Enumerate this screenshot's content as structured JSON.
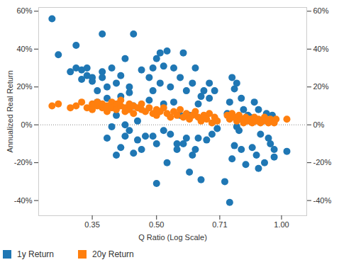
{
  "chart_data": {
    "type": "scatter",
    "x_label": "Q Ratio (Log Scale)",
    "y_label": "Annualized Real Return",
    "log": "x",
    "grid": false,
    "legend": "bottom",
    "xlim": [
      0.26,
      1.15
    ],
    "xticks": [
      0.35,
      {
        "value": 0.5,
        "label": "0.50"
      },
      0.71,
      {
        "value": 1,
        "label": "1.00"
      }
    ],
    "ylim": [
      -48,
      62
    ],
    "yticks": [
      {
        "value": -40,
        "label": "-40%"
      },
      {
        "value": -20,
        "label": "-20%"
      },
      {
        "value": 0,
        "label": "0%"
      },
      {
        "value": 20,
        "label": "20%"
      },
      {
        "value": 40,
        "label": "40%"
      },
      {
        "value": 60,
        "label": "60%"
      }
    ],
    "series": [
      {
        "name": "1y Return",
        "color": "#1f77b4",
        "marker": "circle",
        "x": [
          0.28,
          0.29,
          0.31,
          0.32,
          0.32,
          0.33,
          0.33,
          0.34,
          0.34,
          0.35,
          0.35,
          0.36,
          0.36,
          0.37,
          0.37,
          0.37,
          0.38,
          0.38,
          0.38,
          0.39,
          0.39,
          0.39,
          0.4,
          0.4,
          0.4,
          0.41,
          0.41,
          0.41,
          0.42,
          0.42,
          0.42,
          0.43,
          0.43,
          0.43,
          0.44,
          0.44,
          0.44,
          0.45,
          0.45,
          0.46,
          0.46,
          0.47,
          0.48,
          0.48,
          0.49,
          0.49,
          0.49,
          0.5,
          0.5,
          0.5,
          0.51,
          0.51,
          0.52,
          0.52,
          0.52,
          0.53,
          0.53,
          0.54,
          0.54,
          0.55,
          0.55,
          0.56,
          0.56,
          0.57,
          0.57,
          0.58,
          0.58,
          0.59,
          0.59,
          0.6,
          0.6,
          0.61,
          0.61,
          0.62,
          0.62,
          0.63,
          0.63,
          0.64,
          0.64,
          0.65,
          0.66,
          0.67,
          0.67,
          0.68,
          0.69,
          0.7,
          0.73,
          0.74,
          0.75,
          0.75,
          0.76,
          0.76,
          0.77,
          0.77,
          0.78,
          0.78,
          0.79,
          0.8,
          0.8,
          0.81,
          0.82,
          0.83,
          0.84,
          0.85,
          0.86,
          0.87,
          0.88,
          0.88,
          0.89,
          0.9,
          0.91,
          0.92,
          0.93,
          0.94,
          0.95,
          0.96,
          0.96,
          1.03
        ],
        "values": [
          56,
          37,
          28,
          30,
          42,
          29,
          24,
          30,
          26,
          25,
          23,
          18,
          12,
          48,
          28,
          25,
          20,
          14,
          -7,
          -1,
          30,
          10,
          22,
          -16,
          5,
          -12,
          15,
          26,
          35,
          0,
          -6,
          17,
          -3,
          20,
          -15,
          48,
          10,
          2,
          -8,
          -13,
          29,
          -6,
          25,
          13,
          -6,
          30,
          18,
          -10,
          35,
          -31,
          38,
          22,
          -3,
          11,
          31,
          -20,
          39,
          20,
          -5,
          12,
          30,
          -10,
          -13,
          25,
          5,
          -10,
          38,
          -7,
          18,
          -25,
          5,
          22,
          -16,
          30,
          -13,
          11,
          -7,
          -29,
          15,
          18,
          -8,
          14,
          22,
          -5,
          18,
          -2,
          -30,
          6,
          -41,
          12,
          25,
          -18,
          -11,
          19,
          -1,
          22,
          -3,
          -13,
          14,
          8,
          -21,
          5,
          4,
          -12,
          12,
          -16,
          8,
          -23,
          -5,
          2,
          -20,
          6,
          -7,
          -10,
          5,
          -17,
          -13,
          -14
        ]
      },
      {
        "name": "20y Return",
        "color": "#ff7f0e",
        "marker": "circle",
        "x": [
          0.28,
          0.29,
          0.31,
          0.32,
          0.33,
          0.34,
          0.35,
          0.35,
          0.36,
          0.36,
          0.37,
          0.37,
          0.38,
          0.38,
          0.39,
          0.39,
          0.4,
          0.4,
          0.41,
          0.41,
          0.42,
          0.42,
          0.43,
          0.43,
          0.44,
          0.44,
          0.45,
          0.46,
          0.46,
          0.47,
          0.48,
          0.49,
          0.5,
          0.5,
          0.51,
          0.52,
          0.53,
          0.54,
          0.55,
          0.56,
          0.57,
          0.58,
          0.59,
          0.6,
          0.61,
          0.62,
          0.63,
          0.64,
          0.65,
          0.66,
          0.67,
          0.68,
          0.69,
          0.7,
          0.74,
          0.75,
          0.76,
          0.77,
          0.78,
          0.79,
          0.8,
          0.81,
          0.82,
          0.83,
          0.84,
          0.85,
          0.86,
          0.87,
          0.88,
          0.89,
          0.9,
          0.91,
          0.92,
          0.93,
          0.94,
          0.95,
          0.96,
          0.97,
          1.03
        ],
        "values": [
          10,
          11,
          9,
          10,
          12,
          9,
          11,
          8,
          10,
          12,
          9,
          11,
          10,
          7,
          12,
          9,
          11,
          8,
          10,
          13,
          9,
          7,
          11,
          8,
          10,
          6,
          9,
          8,
          11,
          7,
          9,
          6,
          8,
          5,
          7,
          9,
          6,
          4,
          7,
          5,
          8,
          4,
          6,
          3,
          5,
          7,
          4,
          2,
          5,
          3,
          6,
          1,
          4,
          2,
          5,
          3,
          6,
          4,
          2,
          5,
          3,
          1,
          4,
          2,
          3,
          1,
          4,
          2,
          3,
          1,
          2,
          4,
          2,
          1,
          3,
          2,
          1,
          3,
          3
        ]
      }
    ]
  }
}
